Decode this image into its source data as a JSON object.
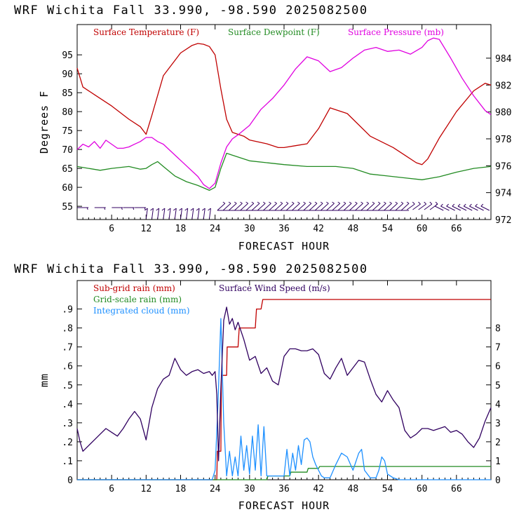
{
  "colors": {
    "temperature": "#c00000",
    "dewpoint": "#228b22",
    "pressure": "#e000e0",
    "subgrid_rain": "#c00000",
    "gridscale_rain": "#228b22",
    "cloud": "#1e90ff",
    "wind_speed": "#300060",
    "wind_barb": "#300060",
    "axes": "#000000"
  },
  "chart_data": [
    {
      "type": "line",
      "title": "WRF   Wichita Fall  33.990, -98.590  2025082500",
      "xlabel": "FORECAST HOUR",
      "ylabel": "Degrees F",
      "xlim": [
        0,
        72
      ],
      "ylim": [
        51.5,
        103
      ],
      "y2lim": [
        972,
        986.5
      ],
      "x_ticks": [
        6,
        12,
        18,
        24,
        30,
        36,
        42,
        48,
        54,
        60,
        66
      ],
      "x_tick_labels": [
        "6",
        "12",
        "18",
        "24",
        "30",
        "36",
        "42",
        "48",
        "54",
        "60",
        "66"
      ],
      "y_ticks": [
        55,
        60,
        65,
        70,
        75,
        80,
        85,
        90,
        95
      ],
      "y_tick_labels": [
        "55",
        "60",
        "65",
        "70",
        "75",
        "80",
        "85",
        "90",
        "95"
      ],
      "y2_ticks": [
        972,
        974,
        976,
        978,
        980,
        982,
        984
      ],
      "y2_tick_labels": [
        "972",
        "974",
        "976",
        "978",
        "980",
        "982",
        "984"
      ],
      "grid": false,
      "legend_position": "top",
      "series": [
        {
          "name": "Surface Temperature (F)",
          "axis": "left",
          "color_key": "temperature",
          "x": [
            0,
            1,
            3,
            6,
            9,
            11,
            12,
            13,
            15,
            18,
            20,
            21,
            22,
            23,
            24,
            25,
            26,
            27,
            29,
            30,
            33,
            35,
            36,
            38,
            40,
            42,
            44,
            45,
            47,
            49,
            51,
            53,
            55,
            57,
            59,
            60,
            61,
            63,
            66,
            69,
            71,
            72
          ],
          "y": [
            91.5,
            86.5,
            84.5,
            81.5,
            78.0,
            76.0,
            74.0,
            79.0,
            89.5,
            95.5,
            97.5,
            98.0,
            97.8,
            97.2,
            95.0,
            86.0,
            78.0,
            74.5,
            73.5,
            72.5,
            71.5,
            70.5,
            70.5,
            71.0,
            71.5,
            75.5,
            81.0,
            80.5,
            79.5,
            76.5,
            73.5,
            72.0,
            70.5,
            68.5,
            66.5,
            66.0,
            67.5,
            73.0,
            80.0,
            85.5,
            87.5,
            87.0
          ]
        },
        {
          "name": "Surface Dewpoint (F)",
          "axis": "left",
          "color_key": "dewpoint",
          "x": [
            0,
            2,
            4,
            6,
            9,
            11,
            12,
            13,
            14,
            15,
            17,
            19,
            21,
            23,
            24,
            25,
            26,
            27,
            30,
            33,
            36,
            40,
            45,
            48,
            51,
            54,
            57,
            60,
            63,
            66,
            69,
            72
          ],
          "y": [
            65.5,
            65.0,
            64.5,
            65.0,
            65.5,
            64.8,
            65.0,
            66.0,
            66.8,
            65.5,
            63.0,
            61.5,
            60.5,
            59.2,
            60.0,
            65.0,
            69.0,
            68.5,
            67.0,
            66.5,
            66.0,
            65.5,
            65.5,
            65.0,
            63.5,
            63.0,
            62.5,
            62.0,
            62.8,
            64.0,
            65.0,
            65.5
          ]
        },
        {
          "name": "Surface Pressure (mb)",
          "axis": "right",
          "color_key": "pressure",
          "x": [
            0,
            1,
            2,
            3,
            4,
            5,
            6,
            7,
            8,
            9,
            10,
            11,
            12,
            13,
            14,
            15,
            17,
            19,
            21,
            22,
            23,
            24,
            25,
            26,
            27,
            28,
            30,
            32,
            34,
            36,
            38,
            40,
            42,
            44,
            46,
            48,
            50,
            52,
            54,
            56,
            58,
            60,
            61,
            62,
            63,
            65,
            67,
            69,
            71,
            72
          ],
          "y": [
            977.2,
            977.6,
            977.4,
            977.8,
            977.3,
            977.9,
            977.6,
            977.3,
            977.3,
            977.4,
            977.6,
            977.8,
            978.1,
            978.1,
            977.8,
            977.6,
            976.8,
            976.0,
            975.2,
            974.6,
            974.3,
            974.7,
            976.2,
            977.4,
            978.0,
            978.3,
            979.0,
            980.2,
            981.0,
            982.0,
            983.2,
            984.1,
            983.8,
            983.0,
            983.3,
            984.0,
            984.6,
            984.8,
            984.5,
            984.6,
            984.3,
            984.8,
            985.3,
            985.5,
            985.4,
            984.0,
            982.5,
            981.2,
            980.1,
            979.8
          ]
        }
      ],
      "wind_barbs": {
        "color_key": "wind_barb",
        "x": [
          1,
          4,
          7,
          9,
          11,
          12,
          13,
          14,
          15,
          16,
          17,
          18,
          19,
          20,
          21,
          22,
          23,
          25,
          26,
          27,
          28,
          29,
          30,
          31,
          32,
          33,
          34,
          35,
          36,
          37,
          38,
          39,
          40,
          41,
          42,
          43,
          44,
          45,
          46,
          47,
          48,
          49,
          50,
          51,
          52,
          53,
          54,
          55,
          56,
          57,
          58,
          59,
          60,
          61,
          62,
          63,
          64,
          65,
          66,
          67,
          68,
          69,
          70,
          71
        ]
      }
    },
    {
      "type": "line",
      "title": "WRF   Wichita Fall  33.990, -98.590  2025082500",
      "xlabel": "FORECAST HOUR",
      "ylabel": "mm",
      "xlim": [
        0,
        72
      ],
      "ylim": [
        0,
        1.05
      ],
      "y2lim": [
        0,
        10.5
      ],
      "x_ticks": [
        6,
        12,
        18,
        24,
        30,
        36,
        42,
        48,
        54,
        60,
        66
      ],
      "x_tick_labels": [
        "6",
        "12",
        "18",
        "24",
        "30",
        "36",
        "42",
        "48",
        "54",
        "60",
        "66"
      ],
      "y_ticks": [
        0,
        0.1,
        0.2,
        0.3,
        0.4,
        0.5,
        0.6,
        0.7,
        0.8,
        0.9
      ],
      "y_tick_labels": [
        "0",
        ".1",
        ".2",
        ".3",
        ".4",
        ".5",
        ".6",
        ".7",
        ".8",
        ".9"
      ],
      "y2_ticks": [
        0,
        1,
        2,
        3,
        4,
        5,
        6,
        7,
        8
      ],
      "y2_tick_labels": [
        "0",
        "1",
        "2",
        "3",
        "4",
        "5",
        "6",
        "7",
        "8"
      ],
      "grid": false,
      "legend_position": "top-left",
      "series": [
        {
          "name": "Sub-grid rain (mm)",
          "axis": "left",
          "color_key": "subgrid_rain",
          "x": [
            0,
            24,
            24.3,
            24.4,
            25,
            25.1,
            26,
            26.1,
            28,
            28.2,
            31,
            31.2,
            32,
            32.3,
            72
          ],
          "y": [
            0,
            0,
            0,
            0.15,
            0.15,
            0.55,
            0.55,
            0.7,
            0.7,
            0.8,
            0.8,
            0.9,
            0.9,
            0.95,
            0.95
          ]
        },
        {
          "name": "Grid-scale rain (mm)",
          "axis": "left",
          "color_key": "gridscale_rain",
          "x": [
            0,
            33,
            33.2,
            37,
            37.2,
            40,
            40.2,
            42,
            42.2,
            72
          ],
          "y": [
            0,
            0,
            0.02,
            0.02,
            0.04,
            0.04,
            0.06,
            0.06,
            0.07,
            0.07
          ]
        },
        {
          "name": "Integrated cloud (mm)",
          "axis": "left",
          "color_key": "cloud",
          "x": [
            0,
            23.5,
            24,
            24.5,
            25,
            25.5,
            26,
            26.5,
            27,
            27.5,
            28,
            28.5,
            29,
            29.5,
            30,
            30.5,
            31,
            31.5,
            32,
            32.5,
            33,
            33.5,
            34,
            34.5,
            35,
            35.5,
            36,
            36.5,
            37,
            37.5,
            38,
            38.5,
            39,
            39.5,
            40,
            40.5,
            41,
            41.5,
            42,
            42.5,
            43,
            44,
            45,
            46,
            47,
            48,
            49,
            49.5,
            50,
            51,
            52,
            52.5,
            53,
            53.5,
            54,
            55,
            56,
            72
          ],
          "y": [
            0,
            0,
            0.05,
            0.4,
            0.85,
            0.3,
            0.02,
            0.15,
            0.02,
            0.12,
            0.02,
            0.23,
            0.05,
            0.18,
            0.03,
            0.23,
            0.05,
            0.29,
            0.02,
            0.28,
            0.02,
            0.02,
            0.02,
            0.02,
            0.02,
            0.02,
            0.02,
            0.16,
            0.02,
            0.14,
            0.05,
            0.18,
            0.08,
            0.21,
            0.22,
            0.2,
            0.12,
            0.08,
            0.05,
            0.02,
            0.01,
            0.01,
            0.08,
            0.14,
            0.12,
            0.05,
            0.14,
            0.16,
            0.05,
            0.01,
            0.01,
            0.05,
            0.12,
            0.1,
            0.03,
            0.01,
            0.0,
            0.0
          ]
        },
        {
          "name": "Surface Wind Speed (m/s)",
          "axis": "right",
          "color_key": "wind_speed",
          "x": [
            0,
            0.5,
            1,
            2,
            3,
            4,
            5,
            6,
            7,
            8,
            9,
            10,
            11,
            12,
            13,
            14,
            15,
            16,
            17,
            18,
            19,
            20,
            21,
            22,
            23,
            23.5,
            24,
            24.3,
            24.6,
            25,
            25.5,
            26,
            26.5,
            27,
            27.5,
            28,
            29,
            30,
            31,
            32,
            33,
            34,
            35,
            36,
            37,
            38,
            39,
            40,
            41,
            42,
            43,
            44,
            45,
            46,
            47,
            48,
            49,
            50,
            51,
            52,
            53,
            54,
            55,
            56,
            57,
            58,
            59,
            60,
            61,
            62,
            63,
            64,
            65,
            66,
            67,
            68,
            69,
            70,
            71,
            72
          ],
          "y": [
            2.7,
            2.0,
            1.5,
            1.8,
            2.1,
            2.4,
            2.7,
            2.5,
            2.3,
            2.7,
            3.2,
            3.6,
            3.2,
            2.1,
            3.8,
            4.8,
            5.3,
            5.5,
            6.4,
            5.8,
            5.5,
            5.7,
            5.8,
            5.6,
            5.7,
            5.5,
            5.7,
            4.5,
            1.0,
            4.8,
            8.4,
            9.1,
            8.2,
            8.5,
            7.9,
            8.3,
            7.4,
            6.3,
            6.5,
            5.6,
            5.9,
            5.2,
            5.0,
            6.5,
            6.9,
            6.9,
            6.8,
            6.8,
            6.9,
            6.6,
            5.6,
            5.3,
            5.9,
            6.4,
            5.5,
            5.9,
            6.3,
            6.2,
            5.3,
            4.5,
            4.1,
            4.7,
            4.2,
            3.8,
            2.6,
            2.2,
            2.4,
            2.7,
            2.7,
            2.6,
            2.7,
            2.8,
            2.5,
            2.6,
            2.4,
            2.0,
            1.7,
            2.2,
            3.1,
            3.8
          ]
        }
      ]
    }
  ]
}
